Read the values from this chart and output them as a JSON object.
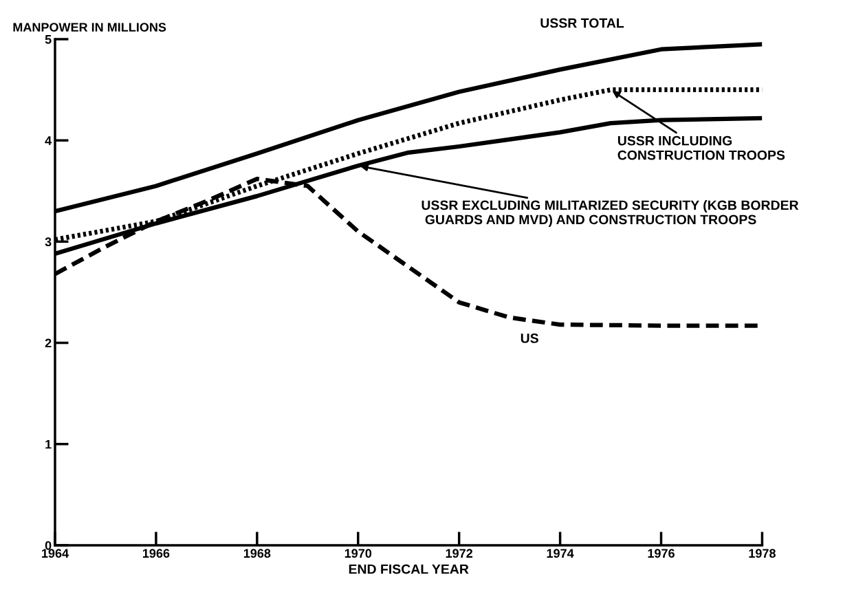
{
  "chart_data": {
    "type": "line",
    "ylabel": "MANPOWER IN MILLIONS",
    "xlabel": "END FISCAL YEAR",
    "xlim": [
      1964,
      1978
    ],
    "xticks": [
      1964,
      1966,
      1968,
      1970,
      1972,
      1974,
      1976,
      1978
    ],
    "ylim": [
      0,
      5
    ],
    "yticks": [
      0,
      1,
      2,
      3,
      4,
      5
    ],
    "grid": false,
    "legend": false,
    "annotations": [
      {
        "text": "USSR INCLUDING\nCONSTRUCTION TROOPS",
        "x": 1975,
        "y": 4.5
      },
      {
        "text": "USSR EXCLUDING MILITARIZED SECURITY (KGB BORDER\n GUARDS AND MVD) AND CONSTRUCTION TROOPS",
        "x": 1970,
        "y": 3.75
      }
    ],
    "series": [
      {
        "name": "USSR TOTAL",
        "color": "#000000",
        "line_style": "solid",
        "x": [
          1964,
          1966,
          1968,
          1970,
          1972,
          1974,
          1976,
          1978
        ],
        "values": [
          3.3,
          3.55,
          3.87,
          4.2,
          4.48,
          4.7,
          4.9,
          4.95
        ]
      },
      {
        "color": "#000000",
        "line_style": "dotted",
        "x": [
          1964,
          1966,
          1968,
          1970,
          1972,
          1974,
          1975,
          1976,
          1978
        ],
        "values": [
          3.02,
          3.2,
          3.55,
          3.87,
          4.17,
          4.4,
          4.5,
          4.5,
          4.5
        ]
      },
      {
        "color": "#000000",
        "line_style": "solid",
        "x": [
          1964,
          1966,
          1968,
          1970,
          1971,
          1972,
          1974,
          1975,
          1976,
          1978
        ],
        "values": [
          2.88,
          3.18,
          3.45,
          3.75,
          3.88,
          3.94,
          4.08,
          4.17,
          4.2,
          4.22
        ]
      },
      {
        "name": "US",
        "color": "#000000",
        "line_style": "dashed",
        "x": [
          1964,
          1965,
          1966,
          1967,
          1968,
          1969,
          1970,
          1971,
          1972,
          1973,
          1974,
          1976,
          1978
        ],
        "values": [
          2.68,
          2.95,
          3.2,
          3.4,
          3.62,
          3.55,
          3.1,
          2.75,
          2.4,
          2.25,
          2.18,
          2.17,
          2.17
        ]
      }
    ]
  }
}
